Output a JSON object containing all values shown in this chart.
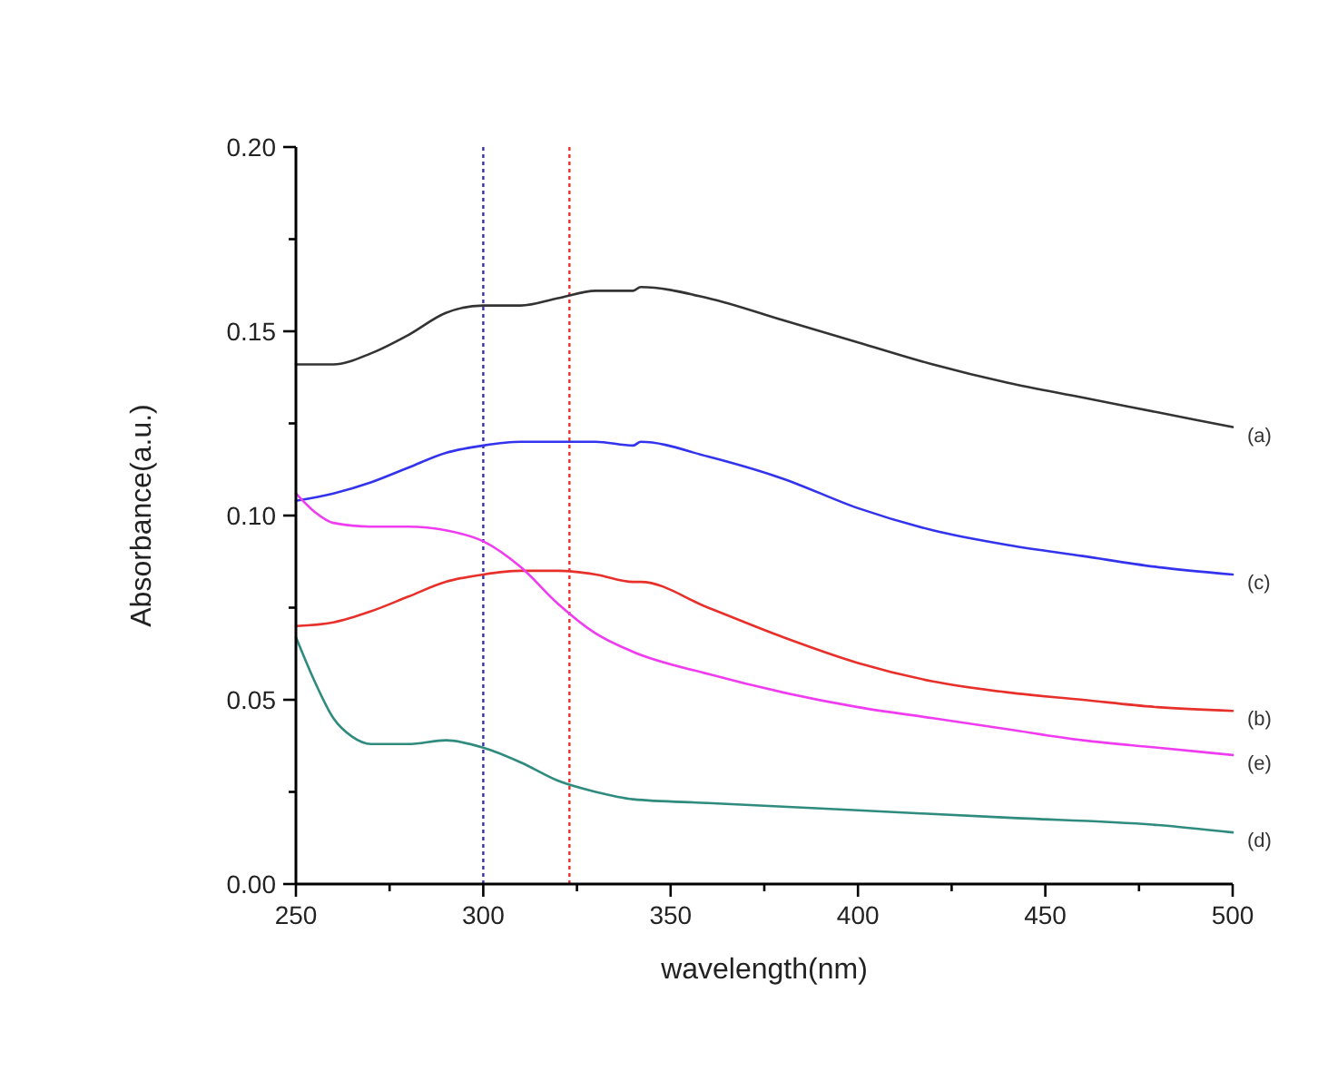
{
  "chart_data": {
    "type": "line",
    "xlabel": "wavelength(nm)",
    "ylabel": "Absorbance(a.u.)",
    "xlim": [
      250,
      500
    ],
    "ylim": [
      0,
      0.2
    ],
    "xticks": [
      250,
      {
        "value": 275,
        "label": null
      },
      300,
      {
        "value": 325,
        "label": null
      },
      350,
      {
        "value": 375,
        "label": null
      },
      400,
      {
        "value": 425,
        "label": null
      },
      450,
      {
        "value": 475,
        "label": null
      },
      500
    ],
    "yticks": [
      {
        "value": 0,
        "label": "0.00"
      },
      {
        "value": 0.025,
        "label": null
      },
      {
        "value": 0.05,
        "label": "0.05"
      },
      {
        "value": 0.075,
        "label": null
      },
      {
        "value": 0.1,
        "label": "0.10"
      },
      {
        "value": 0.125,
        "label": null
      },
      {
        "value": 0.15,
        "label": "0.15"
      },
      {
        "value": 0.175,
        "label": null
      },
      {
        "value": 0.2,
        "label": "0.20"
      }
    ],
    "grid": false,
    "marker": "none",
    "line_style": "solid",
    "series": [
      {
        "name": "(a)",
        "color": "#333333",
        "x": [
          250,
          260,
          270,
          280,
          290,
          300,
          310,
          320,
          330,
          340,
          342,
          360,
          380,
          400,
          420,
          440,
          460,
          480,
          500
        ],
        "values": [
          0.141,
          0.141,
          0.144,
          0.149,
          0.155,
          0.157,
          0.157,
          0.159,
          0.161,
          0.161,
          0.162,
          0.159,
          0.153,
          0.147,
          0.141,
          0.136,
          0.132,
          0.128,
          0.124
        ]
      },
      {
        "name": "(c)",
        "color": "#3333ee",
        "x": [
          250,
          260,
          270,
          280,
          290,
          300,
          310,
          320,
          330,
          340,
          342,
          360,
          380,
          400,
          420,
          440,
          460,
          480,
          500
        ],
        "values": [
          0.104,
          0.106,
          0.109,
          0.113,
          0.117,
          0.119,
          0.12,
          0.12,
          0.12,
          0.119,
          0.12,
          0.116,
          0.11,
          0.102,
          0.096,
          0.092,
          0.089,
          0.086,
          0.084
        ]
      },
      {
        "name": "(b)",
        "color": "#e8302a",
        "x": [
          250,
          260,
          270,
          280,
          290,
          300,
          310,
          320,
          330,
          340,
          342,
          360,
          380,
          400,
          420,
          440,
          460,
          480,
          500
        ],
        "values": [
          0.07,
          0.071,
          0.074,
          0.078,
          0.082,
          0.084,
          0.085,
          0.085,
          0.084,
          0.082,
          0.082,
          0.075,
          0.067,
          0.06,
          0.055,
          0.052,
          0.05,
          0.048,
          0.047
        ]
      },
      {
        "name": "(e)",
        "color": "#f03cf0",
        "x": [
          250,
          255,
          260,
          270,
          280,
          290,
          300,
          310,
          320,
          330,
          340,
          360,
          380,
          400,
          420,
          440,
          460,
          480,
          500
        ],
        "values": [
          0.106,
          0.101,
          0.098,
          0.097,
          0.097,
          0.096,
          0.093,
          0.086,
          0.076,
          0.068,
          0.063,
          0.057,
          0.052,
          0.048,
          0.045,
          0.042,
          0.039,
          0.037,
          0.035
        ]
      },
      {
        "name": "(d)",
        "color": "#2e8b7e",
        "x": [
          250,
          255,
          260,
          265,
          270,
          280,
          290,
          300,
          310,
          320,
          330,
          340,
          360,
          400,
          440,
          480,
          500
        ],
        "values": [
          0.067,
          0.055,
          0.045,
          0.04,
          0.038,
          0.038,
          0.039,
          0.037,
          0.033,
          0.028,
          0.025,
          0.023,
          0.022,
          0.02,
          0.018,
          0.016,
          0.014
        ]
      }
    ],
    "ref_lines": [
      {
        "axis": "x",
        "value": 300,
        "color": "#3333aa",
        "line_style": "dotted"
      },
      {
        "axis": "x",
        "value": 323,
        "color": "#e83030",
        "line_style": "dotted"
      }
    ]
  }
}
